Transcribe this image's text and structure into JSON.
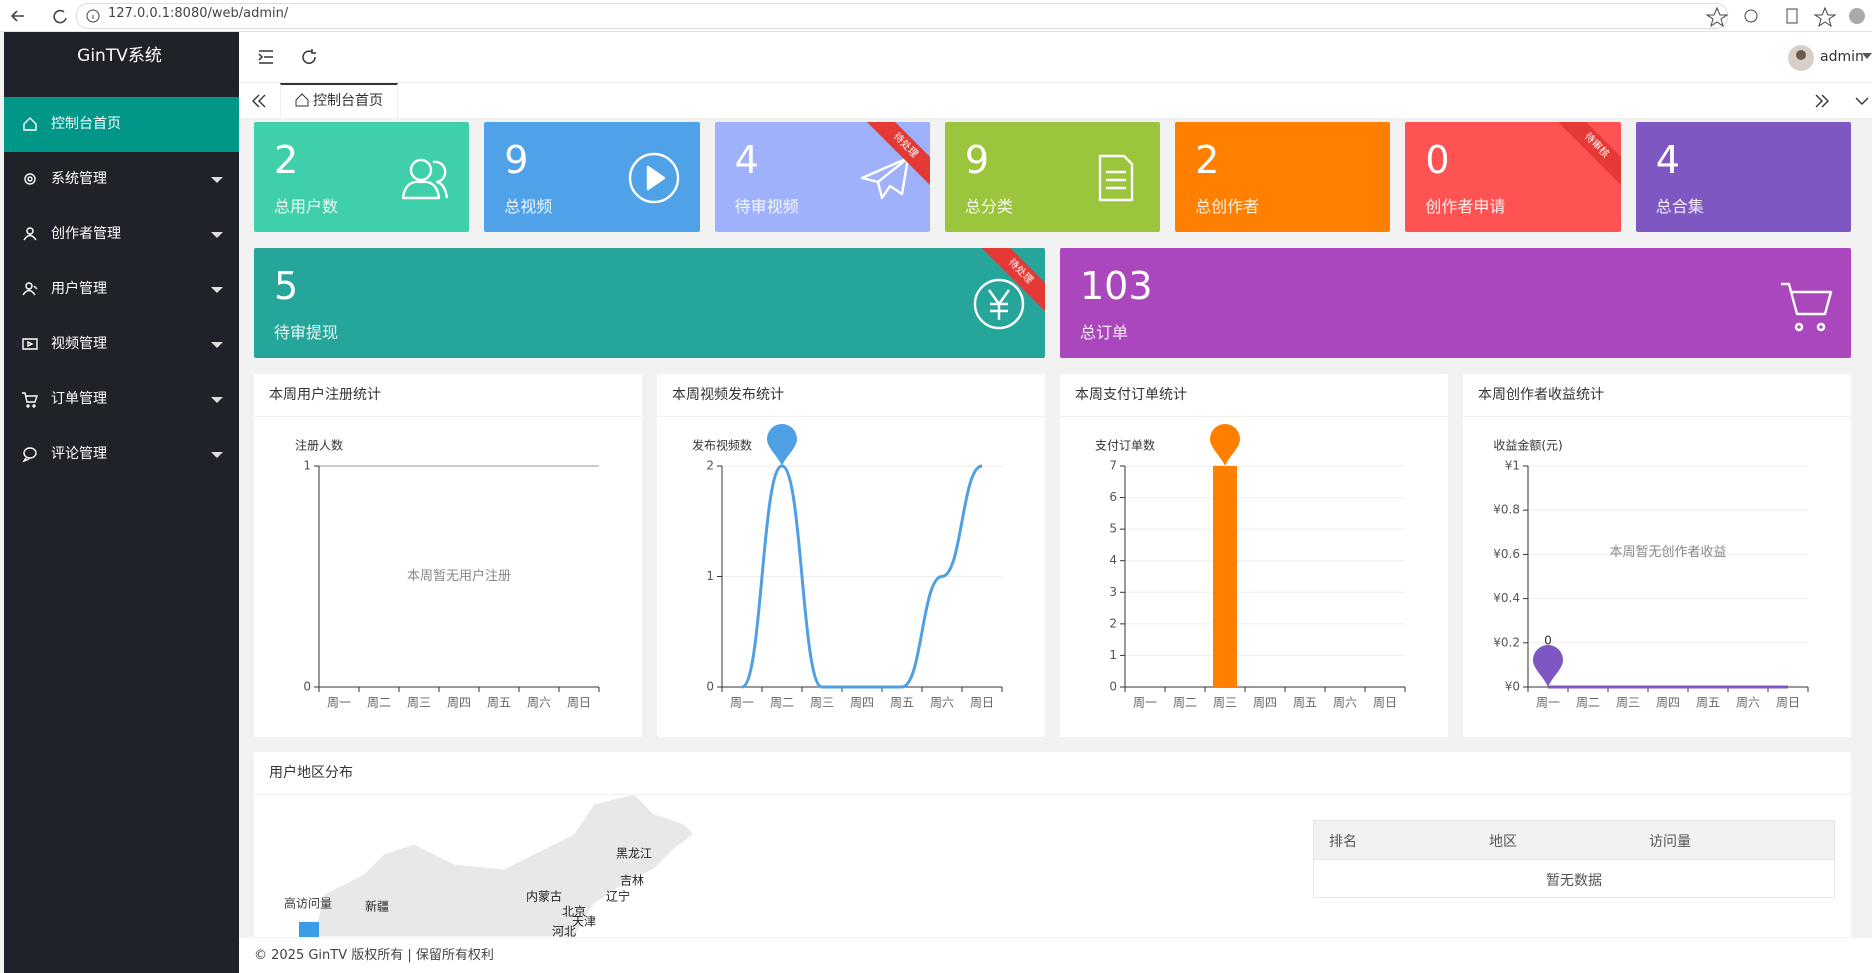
{
  "browser": {
    "url": "127.0.0.1:8080/web/admin/"
  },
  "sidebar": {
    "brand": "GinTV系统",
    "menu": [
      "控制台首页",
      "系统管理",
      "创作者管理",
      "用户管理",
      "视频管理",
      "订单管理",
      "评论管理"
    ]
  },
  "header": {
    "user": "admin",
    "tab": "控制台首页"
  },
  "stats": [
    {
      "value": 2,
      "label": "总用户数",
      "color": "#3fd0ab"
    },
    {
      "value": 9,
      "label": "总视频",
      "color": "#4fa2e8"
    },
    {
      "value": 4,
      "label": "待审视频",
      "color": "#9fb1fb",
      "ribbon": "待处理"
    },
    {
      "value": 9,
      "label": "总分类",
      "color": "#9bc53d"
    },
    {
      "value": 2,
      "label": "总创作者",
      "color": "#ff7f00"
    },
    {
      "value": 0,
      "label": "创作者申请",
      "color": "#ff5353",
      "ribbon": "待审核"
    },
    {
      "value": 4,
      "label": "总合集",
      "color": "#7e57c2"
    }
  ],
  "stats_wide": [
    {
      "value": 5,
      "label": "待审提现",
      "color": "#26a69a",
      "ribbon": "待处理"
    },
    {
      "value": 103,
      "label": "总订单",
      "color": "#ab47bc"
    }
  ],
  "chart_data": [
    {
      "type": "line",
      "title": "本周用户注册统计",
      "y_name": "注册人数",
      "categories": [
        "周一",
        "周二",
        "周三",
        "周四",
        "周五",
        "周六",
        "周日"
      ],
      "ylim": [
        0,
        1
      ],
      "yticks": [
        0,
        1
      ],
      "grid": true,
      "empty_text": "本周暂无用户注册"
    },
    {
      "type": "line",
      "smooth": true,
      "title": "本周视频发布统计",
      "y_name": "发布视频数",
      "categories": [
        "周一",
        "周二",
        "周三",
        "周四",
        "周五",
        "周六",
        "周日"
      ],
      "values": [
        0,
        2,
        0,
        0,
        0,
        1,
        2
      ],
      "color": "#4e9fe3",
      "mark_point": "max",
      "ylim": [
        0,
        2
      ],
      "yticks": [
        0,
        1,
        2
      ],
      "grid": true
    },
    {
      "type": "bar",
      "title": "本周支付订单统计",
      "y_name": "支付订单数",
      "categories": [
        "周一",
        "周二",
        "周三",
        "周四",
        "周五",
        "周六",
        "周日"
      ],
      "values": [
        0,
        0,
        7,
        0,
        0,
        0,
        0
      ],
      "color": "#ff7f00",
      "mark_point": "max",
      "ylim": [
        0,
        7
      ],
      "yticks": [
        0,
        1,
        2,
        3,
        4,
        5,
        6,
        7
      ],
      "grid": true
    },
    {
      "type": "line",
      "title": "本周创作者收益统计",
      "y_name": "收益金额(元)",
      "categories": [
        "周一",
        "周二",
        "周三",
        "周四",
        "周五",
        "周六",
        "周日"
      ],
      "values": [
        0,
        0,
        0,
        0,
        0,
        0,
        0
      ],
      "color": "#7e57c2",
      "mark_point": "max",
      "mark_point_labeled": true,
      "ylim": [
        0,
        1
      ],
      "yticks": [
        {
          "value": 0,
          "label": "¥0"
        },
        {
          "value": 0.2,
          "label": "¥0.2"
        },
        {
          "value": 0.4,
          "label": "¥0.4"
        },
        {
          "value": 0.6,
          "label": "¥0.6"
        },
        {
          "value": 0.8,
          "label": "¥0.8"
        },
        {
          "value": 1,
          "label": "¥1"
        }
      ],
      "grid": true,
      "empty_text": "本周暂无创作者收益"
    }
  ],
  "map": {
    "title": "用户地区分布",
    "legend": "高访问量",
    "regions": [
      "黑龙江",
      "吉林",
      "辽宁",
      "内蒙古",
      "北京",
      "天津",
      "新疆",
      "河北"
    ]
  },
  "table": {
    "headers": [
      "排名",
      "地区",
      "访问量"
    ],
    "empty": "暂无数据"
  },
  "footer": "© 2025 GinTV 版权所有 | 保留所有权利"
}
